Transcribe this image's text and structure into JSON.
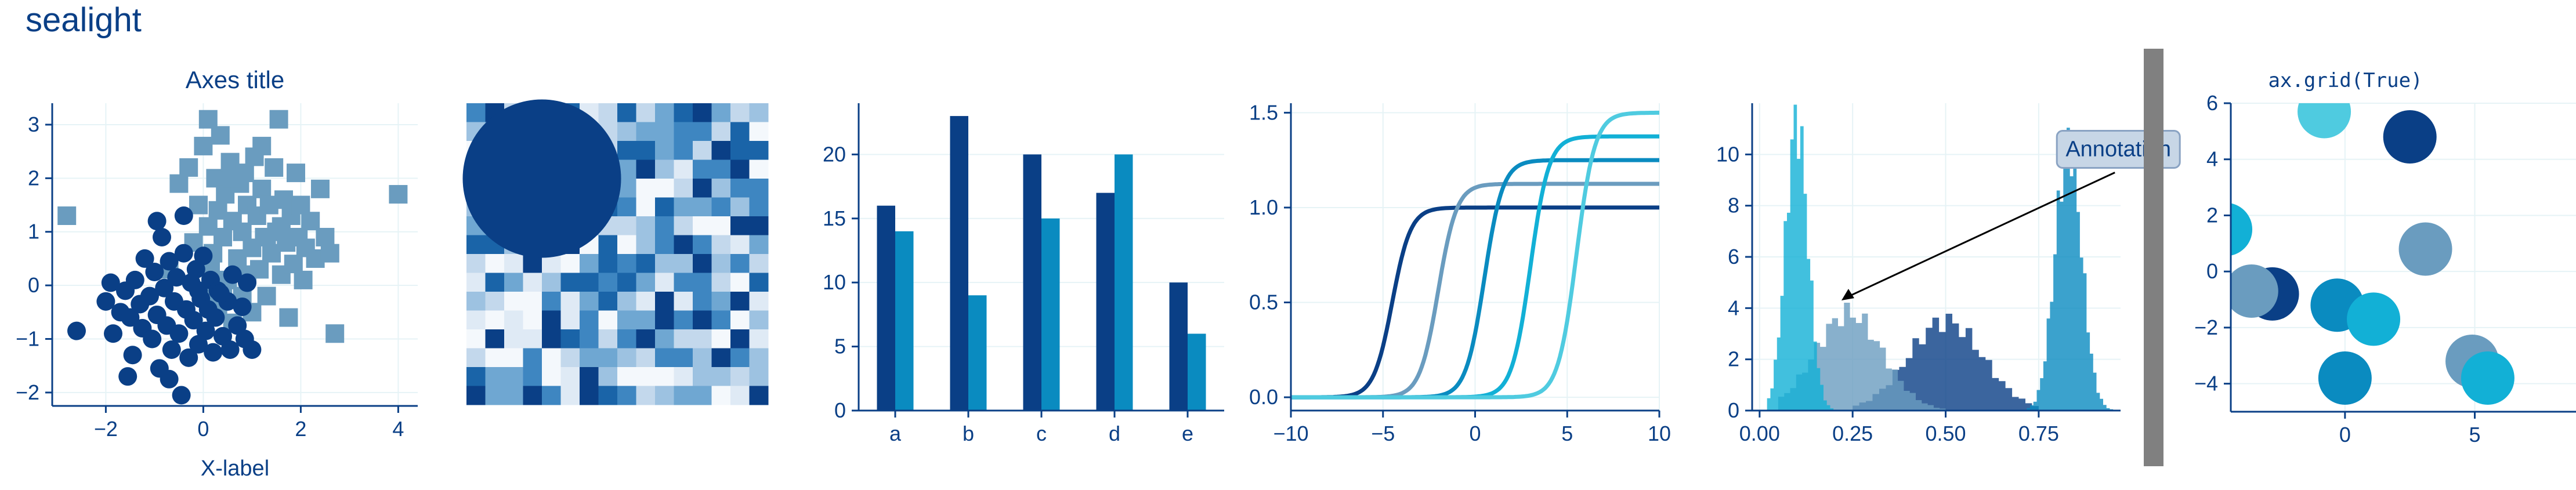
{
  "figure": {
    "suptitle": "sealight"
  },
  "colors": {
    "text": "#0a3f86",
    "axis": "#0a3f86",
    "grid": "#e6f3f6",
    "palette": [
      "#0a3f86",
      "#6a9cbf",
      "#0a8bc0",
      "#12b0d6",
      "#4fcbe0"
    ],
    "scatter_dark": "#0a3f86",
    "scatter_light": "#6a9cbf",
    "circle": "#0a3f86",
    "annotation_box_fill": "#c7d6e6",
    "annotation_box_edge": "#8aa3c3",
    "divider": "#808080"
  },
  "chart_data": [
    {
      "type": "scatter",
      "title": "Axes title",
      "xlabel": "X-label",
      "ylabel": "",
      "xlim": [
        -3.1,
        4.4
      ],
      "ylim": [
        -2.25,
        3.4
      ],
      "xticks": [
        -2,
        0,
        2,
        4
      ],
      "yticks": [
        -2,
        -1,
        0,
        1,
        2,
        3
      ],
      "grid": true,
      "series": [
        {
          "marker": "circle",
          "points": [
            [
              -2.6,
              -0.85
            ],
            [
              -2.0,
              -0.3
            ],
            [
              -1.85,
              -0.9
            ],
            [
              -1.7,
              -0.5
            ],
            [
              -1.6,
              -0.1
            ],
            [
              -1.5,
              -0.6
            ],
            [
              -1.45,
              -1.3
            ],
            [
              -1.4,
              0.1
            ],
            [
              -1.3,
              -0.35
            ],
            [
              -1.25,
              -0.8
            ],
            [
              -1.2,
              0.5
            ],
            [
              -1.1,
              -0.2
            ],
            [
              -1.05,
              -1.0
            ],
            [
              -1.0,
              0.25
            ],
            [
              -0.95,
              -0.55
            ],
            [
              -0.9,
              -1.55
            ],
            [
              -0.85,
              0.9
            ],
            [
              -0.8,
              -0.05
            ],
            [
              -0.75,
              -0.75
            ],
            [
              -0.7,
              0.45
            ],
            [
              -0.65,
              -1.2
            ],
            [
              -0.6,
              -0.3
            ],
            [
              -0.55,
              0.15
            ],
            [
              -0.5,
              -0.9
            ],
            [
              -0.45,
              -2.05
            ],
            [
              -0.4,
              0.6
            ],
            [
              -0.35,
              -0.45
            ],
            [
              -0.3,
              -1.35
            ],
            [
              -0.25,
              0.05
            ],
            [
              -0.2,
              -0.65
            ],
            [
              -0.15,
              0.3
            ],
            [
              -0.1,
              -1.1
            ],
            [
              -0.05,
              -0.25
            ],
            [
              0.0,
              0.55
            ],
            [
              0.05,
              -0.85
            ],
            [
              0.1,
              -0.45
            ],
            [
              0.15,
              0.1
            ],
            [
              0.2,
              -1.25
            ],
            [
              0.25,
              -0.6
            ],
            [
              0.3,
              -0.1
            ],
            [
              0.4,
              -0.95
            ],
            [
              0.5,
              -0.3
            ],
            [
              0.55,
              -1.2
            ],
            [
              0.6,
              0.2
            ],
            [
              0.7,
              -0.75
            ],
            [
              0.8,
              -0.4
            ],
            [
              0.85,
              -1.0
            ],
            [
              0.9,
              0.05
            ],
            [
              1.0,
              -1.2
            ],
            [
              -0.95,
              1.2
            ],
            [
              -0.4,
              1.3
            ],
            [
              -1.55,
              -1.7
            ],
            [
              -0.1,
              -0.1
            ],
            [
              0.35,
              -0.15
            ],
            [
              -1.9,
              0.05
            ],
            [
              -0.7,
              -1.75
            ]
          ]
        },
        {
          "marker": "square",
          "points": [
            [
              -2.8,
              1.3
            ],
            [
              -0.7,
              0.3
            ],
            [
              -0.5,
              1.9
            ],
            [
              -0.3,
              2.2
            ],
            [
              -0.2,
              0.8
            ],
            [
              -0.1,
              1.5
            ],
            [
              0.0,
              2.6
            ],
            [
              0.0,
              -0.1
            ],
            [
              0.1,
              3.1
            ],
            [
              0.1,
              1.1
            ],
            [
              0.2,
              0.6
            ],
            [
              0.25,
              2.0
            ],
            [
              0.3,
              1.4
            ],
            [
              0.3,
              -0.4
            ],
            [
              0.35,
              2.8
            ],
            [
              0.4,
              0.9
            ],
            [
              0.45,
              1.7
            ],
            [
              0.5,
              0.1
            ],
            [
              0.55,
              2.3
            ],
            [
              0.6,
              1.2
            ],
            [
              0.6,
              -0.7
            ],
            [
              0.7,
              0.5
            ],
            [
              0.75,
              1.9
            ],
            [
              0.8,
              1.0
            ],
            [
              0.85,
              2.1
            ],
            [
              0.9,
              0.2
            ],
            [
              0.9,
              1.5
            ],
            [
              1.0,
              0.7
            ],
            [
              1.0,
              -0.5
            ],
            [
              1.05,
              2.4
            ],
            [
              1.1,
              1.3
            ],
            [
              1.15,
              0.3
            ],
            [
              1.2,
              1.8
            ],
            [
              1.25,
              0.9
            ],
            [
              1.3,
              -0.2
            ],
            [
              1.35,
              1.5
            ],
            [
              1.4,
              0.6
            ],
            [
              1.45,
              2.2
            ],
            [
              1.5,
              1.0
            ],
            [
              1.55,
              3.1
            ],
            [
              1.6,
              0.2
            ],
            [
              1.65,
              1.6
            ],
            [
              1.7,
              0.8
            ],
            [
              1.75,
              -0.6
            ],
            [
              1.8,
              1.3
            ],
            [
              1.85,
              0.4
            ],
            [
              1.9,
              2.1
            ],
            [
              1.95,
              0.9
            ],
            [
              2.0,
              1.5
            ],
            [
              2.05,
              0.1
            ],
            [
              2.1,
              0.7
            ],
            [
              2.2,
              1.2
            ],
            [
              2.3,
              0.5
            ],
            [
              2.4,
              1.8
            ],
            [
              2.5,
              0.9
            ],
            [
              2.6,
              0.6
            ],
            [
              2.7,
              -0.9
            ],
            [
              4.0,
              1.7
            ],
            [
              0.6,
              2.0
            ],
            [
              1.2,
              2.6
            ],
            [
              0.4,
              0.0
            ],
            [
              0.8,
              -0.2
            ],
            [
              1.3,
              0.9
            ],
            [
              0.15,
              0.3
            ],
            [
              1.6,
              1.1
            ]
          ]
        }
      ]
    },
    {
      "type": "heatmap",
      "rows": 16,
      "cols": 16,
      "value_range": [
        0,
        1
      ],
      "overlay": "circle"
    },
    {
      "type": "bar",
      "categories": [
        "a",
        "b",
        "c",
        "d",
        "e"
      ],
      "series": [
        {
          "values": [
            16,
            23,
            20,
            17,
            10
          ]
        },
        {
          "values": [
            14,
            9,
            15,
            20,
            6
          ]
        }
      ],
      "ylim": [
        0,
        24
      ],
      "yticks": [
        0,
        5,
        10,
        15,
        20
      ],
      "grid": true
    },
    {
      "type": "line",
      "function": "sigmoid",
      "xlim": [
        -10,
        10
      ],
      "ylim": [
        -0.07,
        1.55
      ],
      "xticks": [
        -10,
        -5,
        0,
        5,
        10
      ],
      "yticks": [
        0.0,
        0.5,
        1.0,
        1.5
      ],
      "tick_format": "1dp",
      "grid": true,
      "series": [
        {
          "center": -4.5,
          "height": 1.0
        },
        {
          "center": -2.0,
          "height": 1.125
        },
        {
          "center": 0.5,
          "height": 1.25
        },
        {
          "center": 3.0,
          "height": 1.375
        },
        {
          "center": 5.5,
          "height": 1.5
        }
      ]
    },
    {
      "type": "histogram",
      "xlim": [
        -0.02,
        0.97
      ],
      "ylim": [
        0,
        12
      ],
      "xticks": [
        0.0,
        0.25,
        0.5,
        0.75
      ],
      "yticks": [
        0,
        2,
        4,
        6,
        8,
        10
      ],
      "tick_format": "2dp",
      "grid": true,
      "annotation": {
        "text": "Annotation",
        "xy": [
          0.22,
          4.3
        ],
        "xytext": [
          0.83,
          10.2
        ]
      },
      "series": [
        {
          "mean": 0.5,
          "sd": 0.1,
          "peak": 3.5,
          "bins": 28,
          "range": [
            0.25,
            0.75
          ]
        },
        {
          "mean": 0.24,
          "sd": 0.09,
          "peak": 3.8,
          "bins": 28,
          "range": [
            0.05,
            0.5
          ]
        },
        {
          "mean": 0.83,
          "sd": 0.035,
          "peak": 10.6,
          "bins": 28,
          "range": [
            0.7,
            0.95
          ]
        },
        {
          "mean": 0.1,
          "sd": 0.03,
          "peak": 11.3,
          "bins": 28,
          "range": [
            0.02,
            0.27
          ]
        }
      ]
    },
    {
      "type": "scatter",
      "title": "ax.grid(True)",
      "xlim": [
        -4.4,
        8.9
      ],
      "ylim": [
        -5.0,
        6.0
      ],
      "xticks": [
        0,
        5
      ],
      "yticks": [
        -4,
        -2,
        0,
        2,
        4,
        6
      ],
      "grid": true,
      "points": [
        [
          -0.8,
          5.7
        ],
        [
          2.5,
          4.8
        ],
        [
          3.1,
          0.8
        ],
        [
          -4.6,
          1.5
        ],
        [
          -2.8,
          -0.8
        ],
        [
          -3.6,
          -0.7
        ],
        [
          -0.3,
          -1.2
        ],
        [
          1.1,
          -1.7
        ],
        [
          0.0,
          -3.8
        ],
        [
          4.9,
          -3.2
        ],
        [
          5.5,
          -3.8
        ]
      ]
    }
  ]
}
